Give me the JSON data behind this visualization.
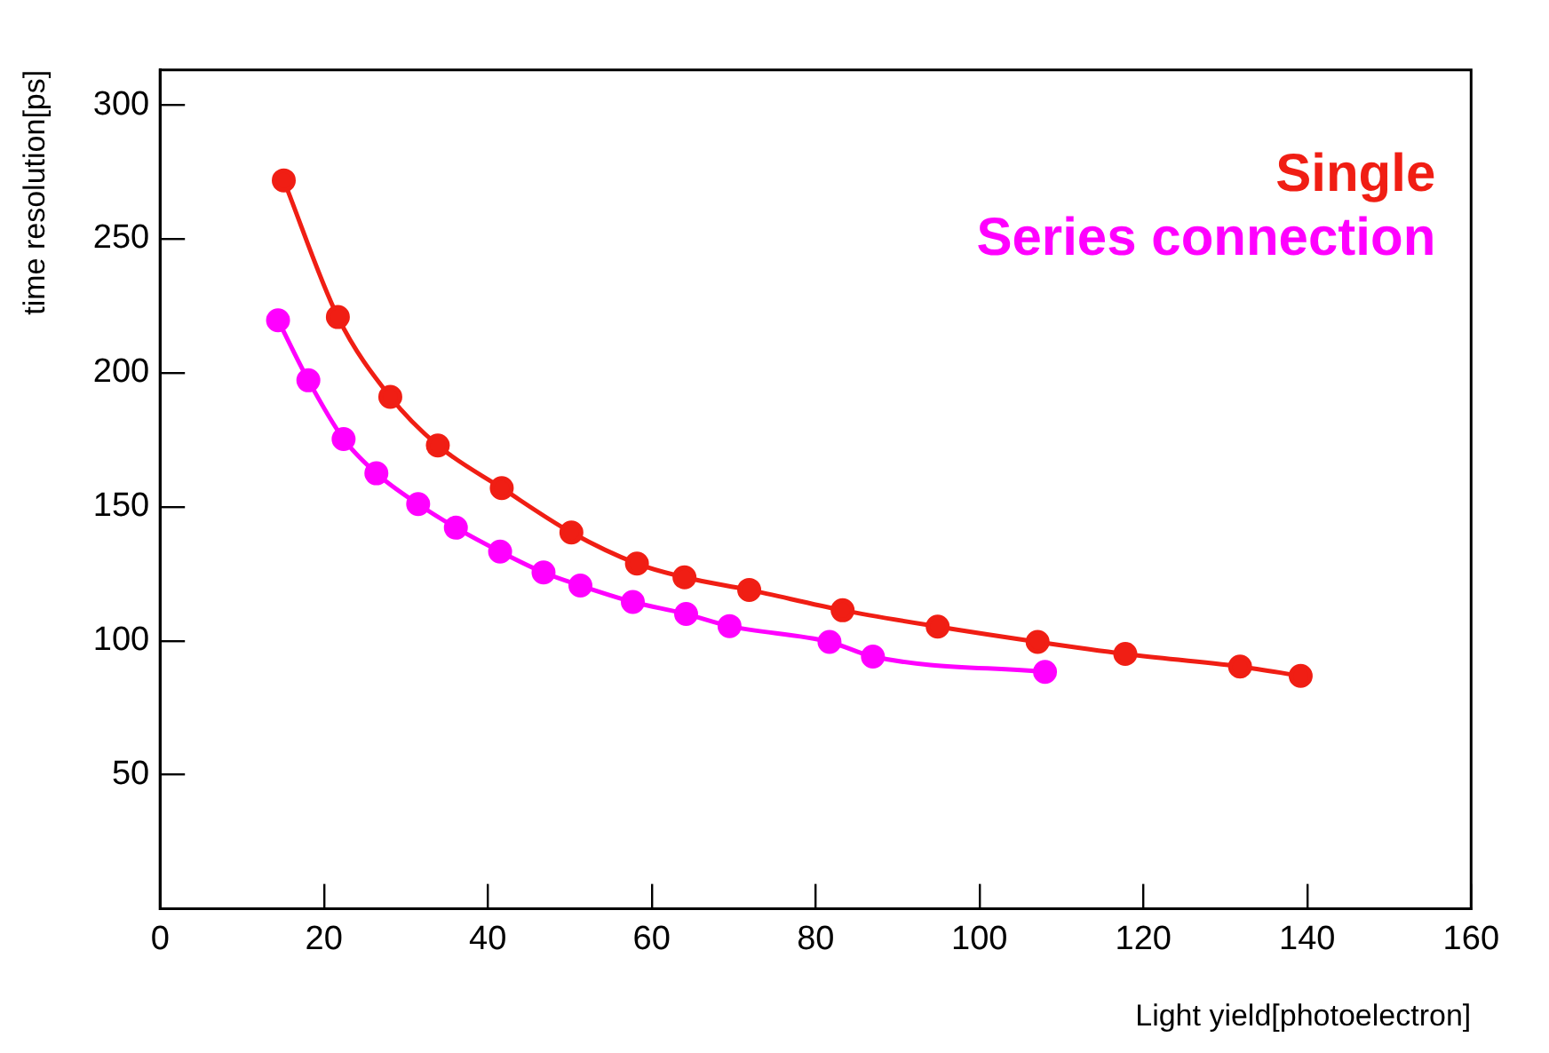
{
  "chart_data": {
    "type": "line",
    "xlabel": "Light yield[photoelectron]",
    "ylabel": "time resolution[ps]",
    "xlim": [
      0,
      160
    ],
    "xticks": [
      0,
      20,
      40,
      60,
      80,
      100,
      120,
      140,
      160
    ],
    "ylim": [
      0,
      313
    ],
    "yticks": [
      50,
      100,
      150,
      200,
      250,
      300
    ],
    "grid": false,
    "legend": "top right",
    "marker": "circle",
    "line_style": "solid",
    "series": [
      {
        "name": "Single",
        "color": "#f01e14",
        "x": [
          15.1,
          21.7,
          28.1,
          33.9,
          41.7,
          50.2,
          58.2,
          64,
          71.9,
          83.3,
          94.9,
          107.1,
          117.8,
          131.8,
          139.2
        ],
        "values": [
          271.8,
          220.8,
          191,
          172.9,
          157,
          140.4,
          128.8,
          123.7,
          119,
          111.4,
          105.3,
          99.6,
          95.1,
          90.4,
          86.9
        ]
      },
      {
        "name": "Series connection",
        "color": "#ff00ff",
        "x": [
          14.4,
          18.1,
          22.4,
          26.4,
          31.5,
          36.1,
          41.5,
          46.8,
          51.3,
          57.7,
          64.2,
          69.5,
          81.7,
          87,
          108
        ],
        "values": [
          219.6,
          197.2,
          175.3,
          162.5,
          151,
          142.2,
          133.3,
          125.5,
          120.6,
          114.5,
          110,
          105.5,
          99.6,
          94.1,
          88.4
        ]
      }
    ]
  }
}
